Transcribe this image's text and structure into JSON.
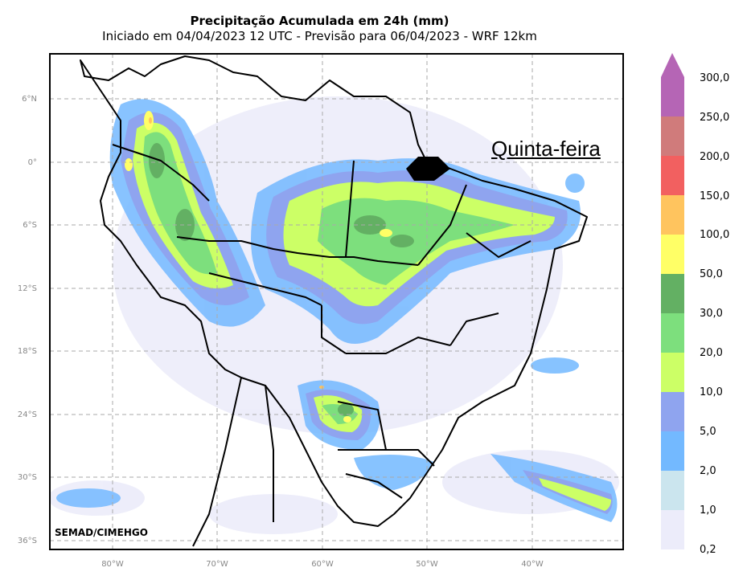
{
  "title": "Precipitação Acumulada em 24h (mm)",
  "subtitle": "Iniciado em 04/04/2023 12 UTC - Previsão para 06/04/2023 - WRF 12km",
  "day_label": "Quinta-feira",
  "credit": "SEMAD/CIMEHGO",
  "lat_labels": [
    "6°N",
    "0°",
    "6°S",
    "12°S",
    "18°S",
    "24°S",
    "30°S",
    "36°S"
  ],
  "lon_labels": [
    "80°W",
    "70°W",
    "60°W",
    "50°W",
    "40°W"
  ],
  "colorbar": {
    "labels": [
      "300,0",
      "250,0",
      "200,0",
      "150,0",
      "100,0",
      "50,0",
      "30,0",
      "20,0",
      "10,0",
      "5,0",
      "2,0",
      "1,0",
      "0,2"
    ],
    "colors": [
      "#b565b5",
      "#d07b7b",
      "#f26060",
      "#ffc45e",
      "#ffff66",
      "#63b063",
      "#7ddf7d",
      "#ccff66",
      "#8fa4ef",
      "#73b9ff",
      "#cbe5ee",
      "#ececfa"
    ],
    "arrow_color": "#b565b5"
  }
}
